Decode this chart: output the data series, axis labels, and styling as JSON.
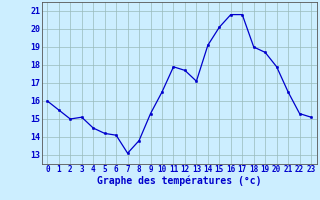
{
  "x": [
    0,
    1,
    2,
    3,
    4,
    5,
    6,
    7,
    8,
    9,
    10,
    11,
    12,
    13,
    14,
    15,
    16,
    17,
    18,
    19,
    20,
    21,
    22,
    23
  ],
  "y": [
    16.0,
    15.5,
    15.0,
    15.1,
    14.5,
    14.2,
    14.1,
    13.1,
    13.8,
    15.3,
    16.5,
    17.9,
    17.7,
    17.1,
    19.1,
    20.1,
    20.8,
    20.8,
    19.0,
    18.7,
    17.9,
    16.5,
    15.3,
    15.1
  ],
  "line_color": "#0000cc",
  "marker": "o",
  "marker_size": 1.8,
  "line_width": 0.9,
  "bg_color": "#cceeff",
  "grid_color": "#99bbbb",
  "xlabel": "Graphe des températures (°c)",
  "xlabel_color": "#0000cc",
  "xlabel_fontsize": 7,
  "tick_color": "#0000cc",
  "tick_fontsize": 5.5,
  "ytick_fontsize": 6.0,
  "ylim": [
    12.5,
    21.5
  ],
  "xlim": [
    -0.5,
    23.5
  ],
  "yticks": [
    13,
    14,
    15,
    16,
    17,
    18,
    19,
    20,
    21
  ],
  "xticks": [
    0,
    1,
    2,
    3,
    4,
    5,
    6,
    7,
    8,
    9,
    10,
    11,
    12,
    13,
    14,
    15,
    16,
    17,
    18,
    19,
    20,
    21,
    22,
    23
  ]
}
